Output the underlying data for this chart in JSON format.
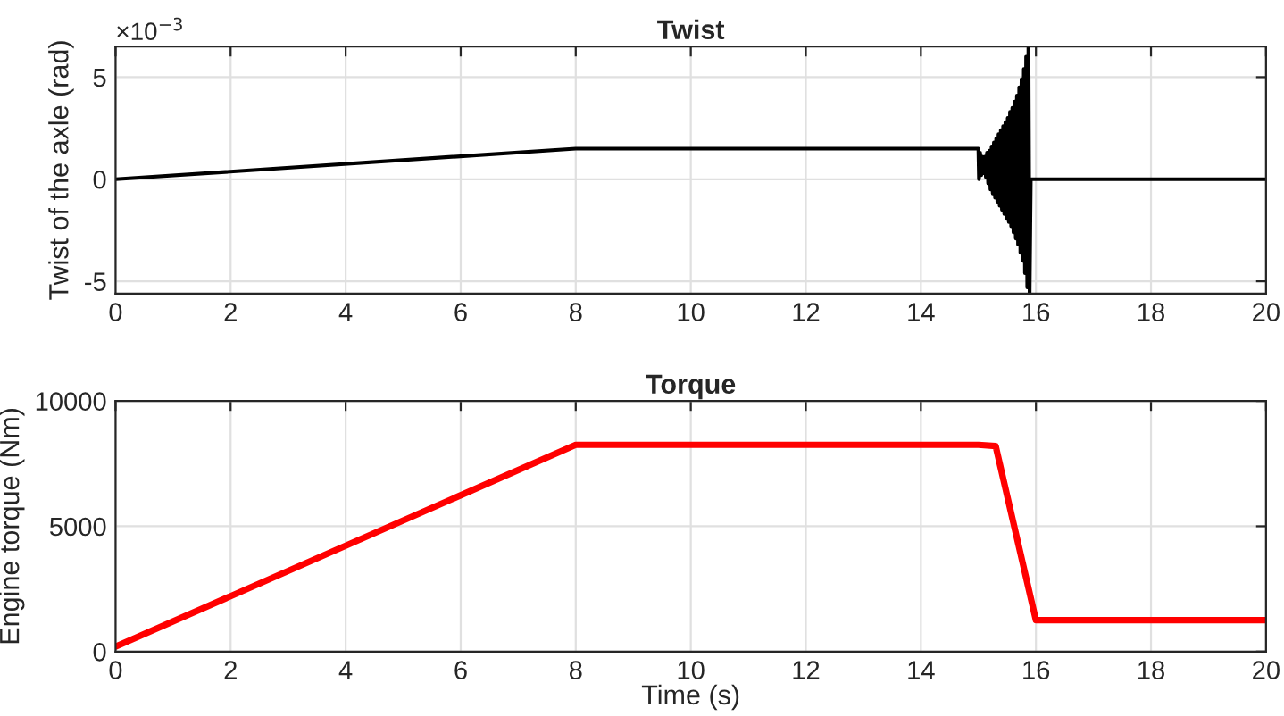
{
  "chart_data": [
    {
      "type": "line",
      "title": "Twist",
      "ylabel": "Twist of the axle (rad)",
      "annotations": [
        "×10$^{−3}$"
      ],
      "xlim": [
        0,
        20
      ],
      "xticks": [
        0,
        2,
        4,
        6,
        8,
        10,
        12,
        14,
        16,
        18,
        20
      ],
      "ylim": [
        -5.6,
        6.5
      ],
      "yticks": [
        -5,
        0,
        5
      ],
      "grid": true,
      "line_style": "solid",
      "marker": "none",
      "series": [
        {
          "color": "#000000",
          "x": [
            0,
            8,
            15.0,
            15.01,
            15.03,
            15.05,
            15.07,
            15.09,
            15.11,
            15.13,
            15.15,
            15.17,
            15.19,
            15.21,
            15.23,
            15.25,
            15.27,
            15.29,
            15.31,
            15.33,
            15.35,
            15.37,
            15.39,
            15.41,
            15.43,
            15.45,
            15.47,
            15.49,
            15.51,
            15.53,
            15.55,
            15.57,
            15.59,
            15.61,
            15.63,
            15.65,
            15.67,
            15.69,
            15.71,
            15.73,
            15.75,
            15.77,
            15.79,
            15.81,
            15.83,
            15.85,
            15.87,
            15.89,
            15.91,
            20
          ],
          "values": [
            0,
            1.5,
            1.5,
            0.0,
            1.3,
            0.2,
            1.1,
            0.3,
            1.1,
            0.1,
            1.3,
            -0.2,
            1.4,
            -0.5,
            1.6,
            -0.7,
            1.8,
            -0.9,
            2.0,
            -1.1,
            2.2,
            -1.3,
            2.4,
            -1.5,
            2.6,
            -1.7,
            2.8,
            -1.9,
            3.0,
            -2.1,
            3.3,
            -2.3,
            3.5,
            -2.6,
            3.8,
            -2.9,
            4.1,
            -3.2,
            4.5,
            -3.6,
            4.9,
            -4.0,
            5.4,
            -4.6,
            6.0,
            -5.3,
            6.5,
            -5.6,
            0.0,
            0.0
          ]
        }
      ]
    },
    {
      "type": "line",
      "title": "Torque",
      "xlabel": "Time (s)",
      "ylabel": "Engine torque (Nm)",
      "xlim": [
        0,
        20
      ],
      "xticks": [
        0,
        2,
        4,
        6,
        8,
        10,
        12,
        14,
        16,
        18,
        20
      ],
      "ylim": [
        0,
        10000
      ],
      "yticks": [
        0,
        5000,
        10000
      ],
      "grid": true,
      "line_style": "solid",
      "marker": "none",
      "series": [
        {
          "color": "#ff0000",
          "x": [
            0,
            8,
            15.0,
            15.3,
            16.0,
            20
          ],
          "values": [
            200,
            8250,
            8250,
            8200,
            1250,
            1250
          ]
        }
      ]
    }
  ]
}
